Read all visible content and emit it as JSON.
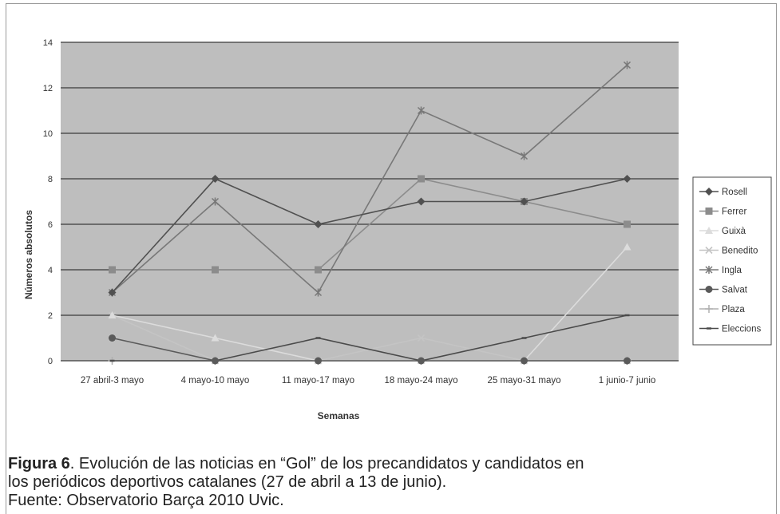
{
  "chart_data": {
    "type": "line",
    "title": "",
    "xlabel": "Semanas",
    "ylabel": "Números absolutos",
    "ylim": [
      0,
      14
    ],
    "yticks": [
      0,
      2,
      4,
      6,
      8,
      10,
      12,
      14
    ],
    "grid": true,
    "legend_position": "right",
    "categories": [
      "27 abril-3 mayo",
      "4 mayo-10 mayo",
      "11 mayo-17 mayo",
      "18 mayo-24 mayo",
      "25 mayo-31 mayo",
      "1 junio-7 junio"
    ],
    "series": [
      {
        "name": "Rosell",
        "values": [
          3,
          8,
          6,
          7,
          7,
          8
        ],
        "color": "#505050",
        "marker": "diamond"
      },
      {
        "name": "Ferrer",
        "values": [
          4,
          4,
          4,
          8,
          7,
          6
        ],
        "color": "#8c8c8c",
        "marker": "square"
      },
      {
        "name": "Guixà",
        "values": [
          2,
          1,
          0,
          0,
          0,
          5
        ],
        "color": "#dcdcdc",
        "marker": "triangle"
      },
      {
        "name": "Benedito",
        "values": [
          2,
          0,
          0,
          1,
          0,
          0
        ],
        "color": "#c4c4c4",
        "marker": "x"
      },
      {
        "name": "Ingla",
        "values": [
          3,
          7,
          3,
          11,
          9,
          13
        ],
        "color": "#787878",
        "marker": "asterisk"
      },
      {
        "name": "Salvat",
        "values": [
          1,
          0,
          0,
          0,
          0,
          0
        ],
        "color": "#5a5a5a",
        "marker": "circle"
      },
      {
        "name": "Plaza",
        "values": [
          0,
          0,
          0,
          0,
          0,
          0
        ],
        "color": "#b0b0b0",
        "marker": "plus"
      },
      {
        "name": "Eleccions",
        "values": [
          0,
          0,
          1,
          0,
          1,
          2
        ],
        "color": "#4a4a4a",
        "marker": "dash"
      }
    ]
  },
  "caption": {
    "figure_label": "Figura 6",
    "text": ". Evolución de las noticias en “Gol” de los precandidatos y candidatos en",
    "line2": "los periódicos deportivos catalanes (27 de abril a 13 de junio).",
    "source": "Fuente: Observatorio Barça 2010 Uvic."
  }
}
